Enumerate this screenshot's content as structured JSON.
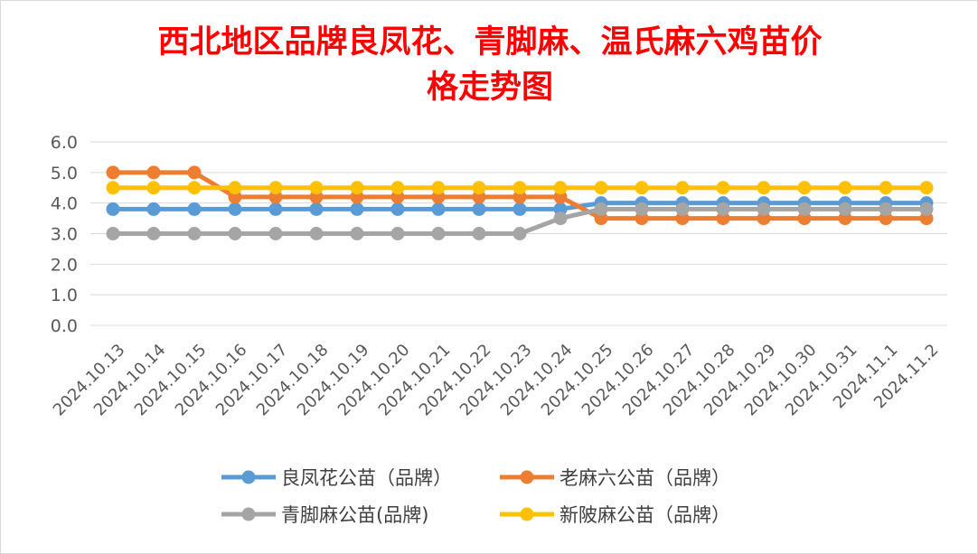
{
  "chart_data": {
    "type": "line",
    "title_lines": [
      "西北地区品牌良凤花、青脚麻、温氏麻六鸡苗价",
      "格走势图"
    ],
    "xlabel": "",
    "ylabel": "",
    "ylim": [
      0,
      6
    ],
    "yticks": [
      "0.0",
      "1.0",
      "2.0",
      "3.0",
      "4.0",
      "5.0",
      "6.0"
    ],
    "grid": true,
    "legend_position": "bottom",
    "categories": [
      "2024.10.13",
      "2024.10.14",
      "2024.10.15",
      "2024.10.16",
      "2024.10.17",
      "2024.10.18",
      "2024.10.19",
      "2024.10.20",
      "2024.10.21",
      "2024.10.22",
      "2024.10.23",
      "2024.10.24",
      "2024.10.25",
      "2024.10.26",
      "2024.10.27",
      "2024.10.28",
      "2024.10.29",
      "2024.10.30",
      "2024.10.31",
      "2024.11.1",
      "2024.11.2"
    ],
    "series": [
      {
        "name": "良凤花公苗（品牌）",
        "color": "#5b9bd5",
        "values": [
          3.8,
          3.8,
          3.8,
          3.8,
          3.8,
          3.8,
          3.8,
          3.8,
          3.8,
          3.8,
          3.8,
          3.8,
          4.0,
          4.0,
          4.0,
          4.0,
          4.0,
          4.0,
          4.0,
          4.0,
          4.0
        ]
      },
      {
        "name": "老麻六公苗（品牌）",
        "color": "#ed7d31",
        "values": [
          5.0,
          5.0,
          5.0,
          4.2,
          4.2,
          4.2,
          4.2,
          4.2,
          4.2,
          4.2,
          4.2,
          4.2,
          3.5,
          3.5,
          3.5,
          3.5,
          3.5,
          3.5,
          3.5,
          3.5,
          3.5
        ]
      },
      {
        "name": "青脚麻公苗(品牌)",
        "color": "#a5a5a5",
        "values": [
          3.0,
          3.0,
          3.0,
          3.0,
          3.0,
          3.0,
          3.0,
          3.0,
          3.0,
          3.0,
          3.0,
          3.5,
          3.8,
          3.8,
          3.8,
          3.8,
          3.8,
          3.8,
          3.8,
          3.8,
          3.8
        ]
      },
      {
        "name": "新陂麻公苗（品牌）",
        "color": "#ffc000",
        "values": [
          4.5,
          4.5,
          4.5,
          4.5,
          4.5,
          4.5,
          4.5,
          4.5,
          4.5,
          4.5,
          4.5,
          4.5,
          4.5,
          4.5,
          4.5,
          4.5,
          4.5,
          4.5,
          4.5,
          4.5,
          4.5
        ]
      }
    ]
  }
}
